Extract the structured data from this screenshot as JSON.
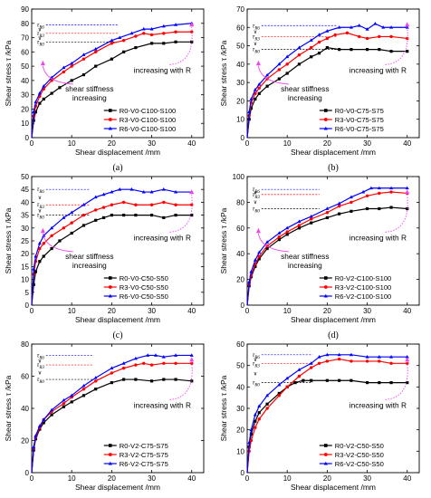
{
  "chart_data": [
    {
      "type": "line",
      "label": "(a)",
      "xlabel": "Shear displacement /mm",
      "ylabel": "Shear stress τ /kPa",
      "xlim": [
        0,
        43
      ],
      "ylim": [
        0,
        90
      ],
      "xticks": [
        0,
        10,
        20,
        30,
        40
      ],
      "yticks": [
        0,
        10,
        20,
        30,
        40,
        50,
        60,
        70,
        80,
        90
      ],
      "legend_position": "bottom-right",
      "annotations": [
        "shear stiffness",
        "increasing",
        "increasing with R"
      ],
      "tau_levels": [
        "τR6",
        "τR3",
        "τR0"
      ],
      "series": [
        {
          "name": "R0-V0-C100-S100",
          "color": "#000000",
          "marker": "square",
          "x": [
            0,
            0.5,
            1,
            2,
            3,
            5,
            7,
            10,
            13,
            16,
            20,
            23,
            26,
            30,
            33,
            36,
            40
          ],
          "y": [
            0,
            12,
            18,
            24,
            27,
            31,
            35,
            40,
            44,
            50,
            55,
            60,
            63,
            66,
            66,
            67,
            67
          ]
        },
        {
          "name": "R3-V0-C100-S100",
          "color": "#ff0000",
          "marker": "circle",
          "x": [
            0,
            0.5,
            1,
            2,
            3,
            5,
            8,
            10,
            13,
            16,
            20,
            23,
            26,
            28,
            30,
            33,
            36,
            40
          ],
          "y": [
            0,
            15,
            22,
            29,
            34,
            40,
            46,
            50,
            55,
            60,
            66,
            68,
            71,
            73,
            72,
            73,
            74,
            74
          ]
        },
        {
          "name": "R6-V0-C100-S100",
          "color": "#0000ff",
          "marker": "triangle",
          "x": [
            0,
            0.5,
            1,
            2,
            3,
            5,
            8,
            10,
            13,
            16,
            20,
            22,
            25,
            28,
            30,
            33,
            36,
            40
          ],
          "y": [
            0,
            18,
            25,
            31,
            36,
            42,
            49,
            52,
            58,
            62,
            68,
            70,
            73,
            76,
            76,
            78,
            79,
            80
          ]
        }
      ]
    },
    {
      "type": "line",
      "label": "(b)",
      "xlabel": "Shear displacement /mm",
      "ylabel": "Shear stress τ /kPa",
      "xlim": [
        0,
        43
      ],
      "ylim": [
        0,
        70
      ],
      "xticks": [
        0,
        10,
        20,
        30,
        40
      ],
      "yticks": [
        0,
        10,
        20,
        30,
        40,
        50,
        60,
        70
      ],
      "legend_position": "bottom-right",
      "annotations": [
        "shear stiffness",
        "increasing",
        "increasing with R"
      ],
      "tau_levels": [
        "τR6",
        "τR3",
        "τR0"
      ],
      "series": [
        {
          "name": "R0-V0-C75-S75",
          "color": "#000000",
          "marker": "square",
          "x": [
            0,
            0.5,
            1,
            2,
            3,
            5,
            8,
            10,
            13,
            16,
            18,
            20,
            23,
            26,
            30,
            33,
            36,
            40
          ],
          "y": [
            0,
            10,
            16,
            21,
            24,
            28,
            32,
            35,
            40,
            44,
            46,
            49,
            48,
            48,
            48,
            48,
            47,
            47
          ]
        },
        {
          "name": "R3-V0-C75-S75",
          "color": "#ff0000",
          "marker": "circle",
          "x": [
            0,
            0.5,
            1,
            2,
            3,
            5,
            8,
            10,
            13,
            16,
            18,
            20,
            22,
            25,
            28,
            30,
            33,
            36,
            40
          ],
          "y": [
            0,
            12,
            19,
            24,
            27,
            32,
            37,
            40,
            45,
            49,
            52,
            54,
            56,
            57,
            55,
            54,
            55,
            55,
            54
          ]
        },
        {
          "name": "R6-V0-C75-S75",
          "color": "#0000ff",
          "marker": "triangle",
          "x": [
            0,
            0.5,
            1,
            2,
            3,
            5,
            8,
            10,
            13,
            16,
            18,
            20,
            23,
            26,
            28,
            30,
            32,
            34,
            36,
            40
          ],
          "y": [
            0,
            14,
            21,
            26,
            29,
            34,
            40,
            44,
            49,
            53,
            56,
            58,
            60,
            60,
            61,
            59,
            62,
            60,
            60,
            60
          ]
        }
      ]
    },
    {
      "type": "line",
      "label": "(c)",
      "xlabel": "Shear displacement /mm",
      "ylabel": "Shear stress τ /kPa",
      "xlim": [
        0,
        43
      ],
      "ylim": [
        0,
        50
      ],
      "xticks": [
        0,
        10,
        20,
        30,
        40
      ],
      "yticks": [
        0,
        5,
        10,
        15,
        20,
        25,
        30,
        35,
        40,
        45,
        50
      ],
      "legend_position": "bottom-right",
      "annotations": [
        "shear stiffness",
        "increasing",
        "increasing with R"
      ],
      "tau_levels": [
        "τR6",
        "τR3",
        "τR0"
      ],
      "series": [
        {
          "name": "R0-V0-C50-S50",
          "color": "#000000",
          "marker": "square",
          "x": [
            0,
            0.5,
            1,
            2,
            3,
            5,
            7,
            10,
            13,
            16,
            18,
            20,
            23,
            26,
            30,
            33,
            36,
            40
          ],
          "y": [
            0,
            8,
            13,
            17,
            19,
            22,
            25,
            28,
            31,
            33,
            34,
            35,
            35,
            35,
            35,
            34,
            35,
            35
          ]
        },
        {
          "name": "R3-V0-C50-S50",
          "color": "#ff0000",
          "marker": "circle",
          "x": [
            0,
            0.5,
            1,
            2,
            3,
            5,
            8,
            10,
            13,
            16,
            18,
            20,
            23,
            26,
            30,
            33,
            36,
            40
          ],
          "y": [
            0,
            12,
            17,
            22,
            24,
            27,
            30,
            32,
            35,
            37,
            38,
            39,
            40,
            39,
            39,
            40,
            39,
            39
          ]
        },
        {
          "name": "R6-V0-C50-S50",
          "color": "#0000ff",
          "marker": "triangle",
          "x": [
            0,
            0.5,
            1,
            2,
            3,
            5,
            8,
            10,
            13,
            16,
            18,
            20,
            22,
            25,
            28,
            30,
            33,
            36,
            40
          ],
          "y": [
            0,
            14,
            19,
            24,
            27,
            30,
            34,
            36,
            39,
            42,
            43,
            44,
            45,
            45,
            44,
            44,
            45,
            44,
            44
          ]
        }
      ]
    },
    {
      "type": "line",
      "label": "(d)",
      "xlabel": "Shear displacement /mm",
      "ylabel": "Shear stress τ /kPa",
      "xlim": [
        0,
        43
      ],
      "ylim": [
        0,
        100
      ],
      "xticks": [
        0,
        10,
        20,
        30,
        40
      ],
      "yticks": [
        0,
        20,
        40,
        60,
        80,
        100
      ],
      "legend_position": "bottom-right",
      "annotations": [
        "shear stiffness",
        "increasing",
        "increasing with R"
      ],
      "tau_levels": [
        "τR6",
        "τR3",
        "τR0"
      ],
      "series": [
        {
          "name": "R0-V2-C100-S100",
          "color": "#000000",
          "marker": "square",
          "x": [
            0,
            0.5,
            1,
            2,
            3,
            5,
            8,
            10,
            13,
            16,
            20,
            23,
            26,
            30,
            33,
            36,
            40
          ],
          "y": [
            0,
            15,
            22,
            30,
            36,
            44,
            51,
            55,
            60,
            64,
            68,
            71,
            73,
            75,
            75,
            76,
            75
          ]
        },
        {
          "name": "R3-V2-C100-S100",
          "color": "#ff0000",
          "marker": "circle",
          "x": [
            0,
            0.5,
            1,
            2,
            3,
            5,
            8,
            10,
            13,
            16,
            20,
            23,
            26,
            30,
            33,
            36,
            40
          ],
          "y": [
            0,
            16,
            23,
            32,
            38,
            46,
            53,
            57,
            62,
            67,
            72,
            77,
            80,
            85,
            87,
            88,
            87
          ]
        },
        {
          "name": "R6-V2-C100-S100",
          "color": "#0000ff",
          "marker": "triangle",
          "x": [
            0,
            0.5,
            1,
            2,
            3,
            5,
            8,
            10,
            13,
            16,
            20,
            23,
            26,
            29,
            31,
            33,
            36,
            40
          ],
          "y": [
            0,
            18,
            26,
            35,
            41,
            49,
            56,
            60,
            65,
            69,
            75,
            79,
            84,
            88,
            91,
            91,
            91,
            91
          ]
        }
      ]
    },
    {
      "type": "line",
      "label": "(e)",
      "xlabel": "Shear displacement /mm",
      "ylabel": "Shear stress τ /kPa",
      "xlim": [
        0,
        43
      ],
      "ylim": [
        0,
        80
      ],
      "xticks": [
        0,
        10,
        20,
        30,
        40
      ],
      "yticks": [
        0,
        20,
        40,
        60,
        80
      ],
      "legend_position": "bottom-right",
      "annotations": [
        "increasing with R"
      ],
      "tau_levels": [
        "τR6",
        "τR3",
        "τR0"
      ],
      "series": [
        {
          "name": "R0-V2-C75-S75",
          "color": "#000000",
          "marker": "square",
          "x": [
            0,
            0.5,
            1,
            2,
            3,
            5,
            8,
            10,
            13,
            16,
            20,
            23,
            26,
            30,
            33,
            36,
            40
          ],
          "y": [
            0,
            14,
            21,
            27,
            31,
            36,
            41,
            44,
            48,
            52,
            56,
            58,
            58,
            57,
            58,
            58,
            57
          ]
        },
        {
          "name": "R3-V2-C75-S75",
          "color": "#ff0000",
          "marker": "circle",
          "x": [
            0,
            0.5,
            1,
            2,
            3,
            5,
            8,
            10,
            13,
            16,
            20,
            23,
            26,
            28,
            30,
            33,
            36,
            40
          ],
          "y": [
            0,
            15,
            22,
            28,
            33,
            38,
            43,
            47,
            52,
            57,
            62,
            65,
            67,
            68,
            67,
            68,
            68,
            68
          ]
        },
        {
          "name": "R6-V2-C75-S75",
          "color": "#0000ff",
          "marker": "triangle",
          "x": [
            0,
            0.5,
            1,
            2,
            3,
            5,
            8,
            10,
            13,
            16,
            20,
            23,
            26,
            29,
            31,
            33,
            36,
            40
          ],
          "y": [
            0,
            16,
            23,
            29,
            33,
            39,
            45,
            48,
            54,
            59,
            65,
            68,
            71,
            73,
            73,
            72,
            73,
            73
          ]
        }
      ]
    },
    {
      "type": "line",
      "label": "(f)",
      "xlabel": "Shear displacement /mm",
      "ylabel": "Shear stress τ /kPa",
      "xlim": [
        0,
        43
      ],
      "ylim": [
        0,
        60
      ],
      "xticks": [
        0,
        10,
        20,
        30,
        40
      ],
      "yticks": [
        0,
        10,
        20,
        30,
        40,
        50,
        60
      ],
      "legend_position": "bottom-right",
      "annotations": [
        "increasing with R"
      ],
      "tau_levels": [
        "τR6",
        "τR3",
        "τR0"
      ],
      "series": [
        {
          "name": "R0-V2-C50-S50",
          "color": "#000000",
          "marker": "square",
          "x": [
            0,
            0.5,
            1,
            2,
            3,
            5,
            8,
            10,
            12,
            14,
            16,
            20,
            23,
            26,
            30,
            33,
            36,
            40
          ],
          "y": [
            0,
            12,
            18,
            24,
            28,
            32,
            37,
            40,
            42,
            43,
            43,
            43,
            43,
            43,
            42,
            42,
            42,
            42
          ]
        },
        {
          "name": "R3-V2-C50-S50",
          "color": "#ff0000",
          "marker": "circle",
          "x": [
            0,
            0.5,
            1,
            2,
            3,
            5,
            8,
            10,
            13,
            16,
            18,
            20,
            23,
            26,
            30,
            33,
            36,
            40
          ],
          "y": [
            0,
            10,
            15,
            21,
            25,
            30,
            36,
            40,
            45,
            49,
            51,
            52,
            53,
            52,
            52,
            52,
            51,
            51
          ]
        },
        {
          "name": "R6-V2-C50-S50",
          "color": "#0000ff",
          "marker": "triangle",
          "x": [
            0,
            0.5,
            1,
            2,
            3,
            5,
            8,
            10,
            13,
            16,
            18,
            20,
            23,
            26,
            30,
            33,
            36,
            40
          ],
          "y": [
            0,
            14,
            20,
            27,
            31,
            36,
            41,
            44,
            48,
            51,
            54,
            55,
            55,
            55,
            54,
            54,
            54,
            54
          ]
        }
      ]
    }
  ]
}
